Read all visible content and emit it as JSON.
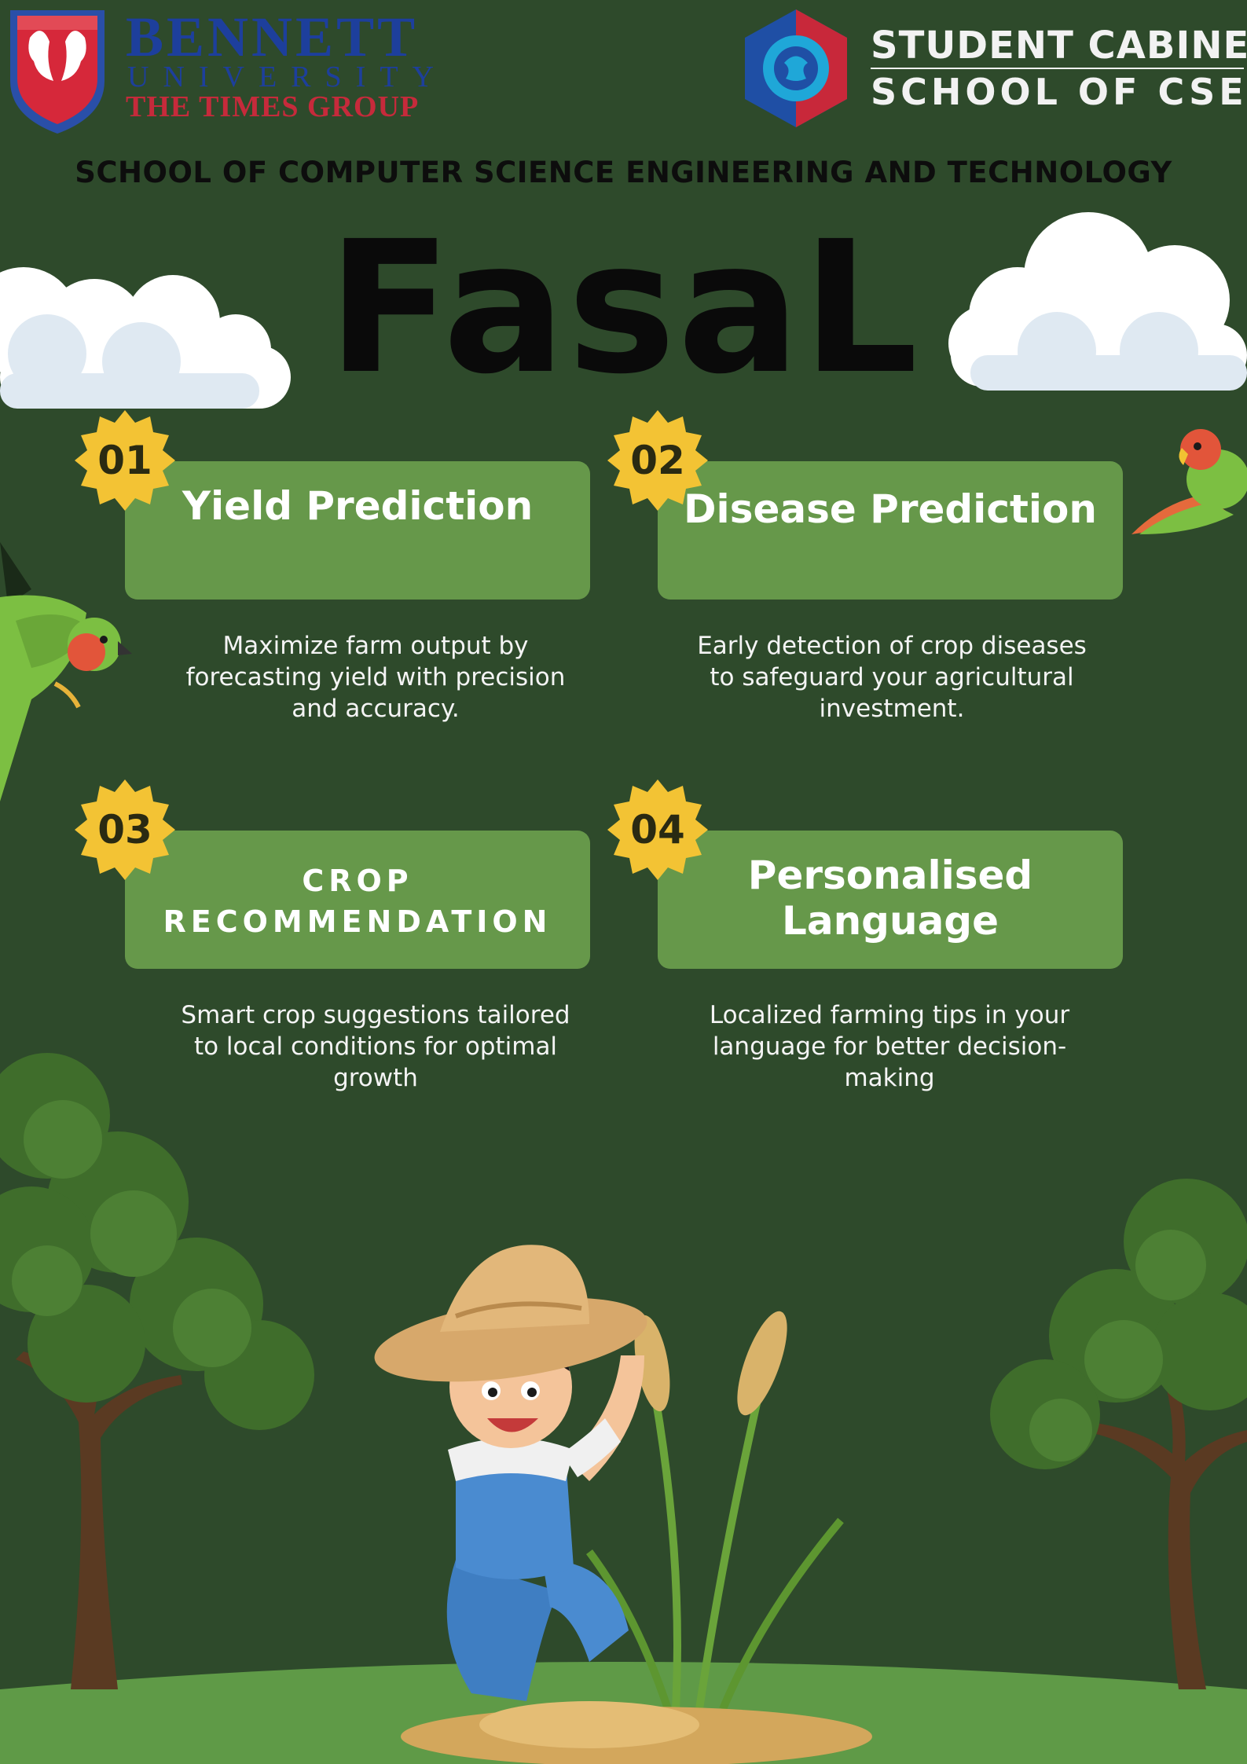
{
  "header": {
    "university_name": "BENNETT",
    "university_sub": "UNIVERSITY",
    "university_group": "THE TIMES GROUP",
    "cabinet_line1": "STUDENT CABINET",
    "cabinet_line2": "SCHOOL OF CSET",
    "school": "SCHOOL OF COMPUTER SCIENCE ENGINEERING AND TECHNOLOGY"
  },
  "title": "FasaL",
  "features": [
    {
      "number": "01",
      "title": "Yield Prediction",
      "description": "Maximize farm output by forecasting yield with precision and accuracy."
    },
    {
      "number": "02",
      "title": "Disease Prediction",
      "description": "Early detection of crop diseases to safeguard your agricultural investment."
    },
    {
      "number": "03",
      "title_line1": "CROP",
      "title_line2": "RECOMMENDATION",
      "description": "Smart crop suggestions tailored to local conditions for optimal growth"
    },
    {
      "number": "04",
      "title_line1": "Personalised",
      "title_line2": "Language",
      "description": "Localized farming tips in your language for better decision-making"
    }
  ],
  "colors": {
    "background": "#2e4a2b",
    "card": "#66984a",
    "badge": "#f3c334",
    "ground": "#5f9a47"
  },
  "icons": [
    "bennett-crest-icon",
    "student-cabinet-icon",
    "cloud-icon",
    "parrot-icon",
    "tree-icon",
    "farmer-illustration",
    "wheat-icon"
  ]
}
